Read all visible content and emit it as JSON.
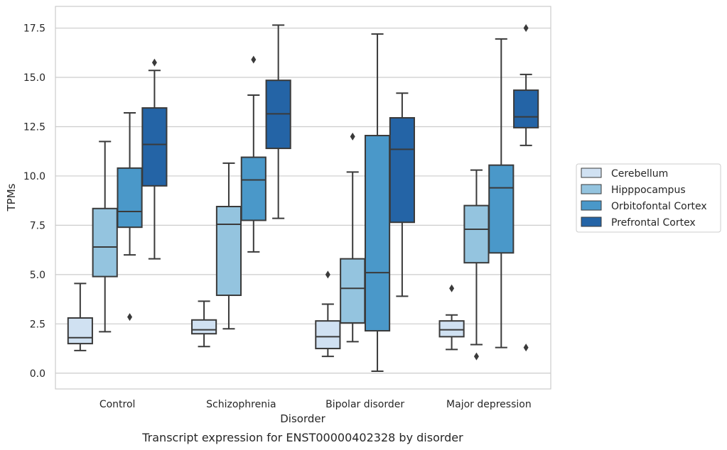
{
  "chart_data": {
    "type": "box",
    "caption": "Transcript expression for ENST00000402328 by disorder",
    "xlabel": "Disorder",
    "ylabel": "TPMs",
    "ylim": [
      -0.8,
      18.6
    ],
    "yticks": [
      0.0,
      2.5,
      5.0,
      7.5,
      10.0,
      12.5,
      15.0,
      17.5
    ],
    "ytick_labels": [
      "0.0",
      "2.5",
      "5.0",
      "7.5",
      "10.0",
      "12.5",
      "15.0",
      "17.5"
    ],
    "grid": "horizontal",
    "legend_position": "right",
    "categories": [
      "Control",
      "Schizophrenia",
      "Bipolar disorder",
      "Major depression"
    ],
    "series": [
      {
        "name": "Cerebellum",
        "color": "#d0e1f2",
        "boxes": [
          {
            "whisker_low": 1.15,
            "q1": 1.5,
            "median": 1.8,
            "q3": 2.8,
            "whisker_high": 4.55,
            "outliers": []
          },
          {
            "whisker_low": 1.35,
            "q1": 2.0,
            "median": 2.2,
            "q3": 2.7,
            "whisker_high": 3.65,
            "outliers": []
          },
          {
            "whisker_low": 0.85,
            "q1": 1.25,
            "median": 1.85,
            "q3": 2.65,
            "whisker_high": 3.5,
            "outliers": [
              5.0
            ]
          },
          {
            "whisker_low": 1.2,
            "q1": 1.85,
            "median": 2.2,
            "q3": 2.65,
            "whisker_high": 2.95,
            "outliers": [
              4.3
            ]
          }
        ]
      },
      {
        "name": "Hipppocampus",
        "color": "#94c4df",
        "boxes": [
          {
            "whisker_low": 2.1,
            "q1": 4.9,
            "median": 6.4,
            "q3": 8.35,
            "whisker_high": 11.75,
            "outliers": []
          },
          {
            "whisker_low": 2.25,
            "q1": 3.95,
            "median": 7.55,
            "q3": 8.45,
            "whisker_high": 10.65,
            "outliers": []
          },
          {
            "whisker_low": 1.6,
            "q1": 2.55,
            "median": 4.3,
            "q3": 5.8,
            "whisker_high": 10.2,
            "outliers": [
              12.0
            ]
          },
          {
            "whisker_low": 1.45,
            "q1": 5.6,
            "median": 7.3,
            "q3": 8.5,
            "whisker_high": 10.3,
            "outliers": [
              0.85
            ]
          }
        ]
      },
      {
        "name": "Orbitofontal Cortex",
        "color": "#4a98c9",
        "boxes": [
          {
            "whisker_low": 6.0,
            "q1": 7.4,
            "median": 8.2,
            "q3": 10.4,
            "whisker_high": 13.2,
            "outliers": [
              2.85
            ]
          },
          {
            "whisker_low": 6.15,
            "q1": 7.75,
            "median": 9.8,
            "q3": 10.95,
            "whisker_high": 14.1,
            "outliers": [
              15.9
            ]
          },
          {
            "whisker_low": 0.1,
            "q1": 2.15,
            "median": 5.1,
            "q3": 12.05,
            "whisker_high": 17.2,
            "outliers": []
          },
          {
            "whisker_low": 1.3,
            "q1": 6.1,
            "median": 9.4,
            "q3": 10.55,
            "whisker_high": 16.95,
            "outliers": []
          }
        ]
      },
      {
        "name": "Prefrontal Cortex",
        "color": "#2464a6",
        "boxes": [
          {
            "whisker_low": 5.8,
            "q1": 9.5,
            "median": 11.6,
            "q3": 13.45,
            "whisker_high": 15.35,
            "outliers": [
              15.75
            ]
          },
          {
            "whisker_low": 7.85,
            "q1": 11.4,
            "median": 13.15,
            "q3": 14.85,
            "whisker_high": 17.65,
            "outliers": []
          },
          {
            "whisker_low": 3.9,
            "q1": 7.65,
            "median": 11.35,
            "q3": 12.95,
            "whisker_high": 14.2,
            "outliers": []
          },
          {
            "whisker_low": 11.55,
            "q1": 12.45,
            "median": 13.0,
            "q3": 14.35,
            "whisker_high": 15.15,
            "outliers": [
              17.5,
              1.3
            ]
          }
        ]
      }
    ]
  }
}
